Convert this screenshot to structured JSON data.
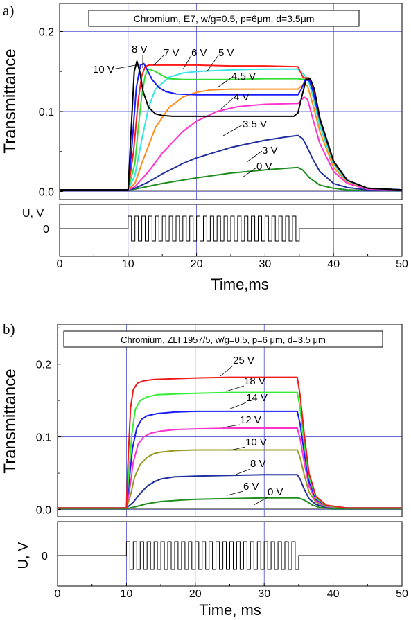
{
  "chart_data": [
    {
      "type": "line",
      "panel_label": "a)",
      "title": "Chromium, E7, w/g=0.5, p=6μm, d=3.5μm",
      "ylabel": "Transmittance",
      "xlabel": "Time,ms",
      "xlim": [
        0,
        50
      ],
      "ylim": [
        -0.01,
        0.235
      ],
      "yticks": [
        0.0,
        0.1,
        0.2
      ],
      "ytick_labels": [
        "0.0",
        "0.1",
        "0.2"
      ],
      "xticks": [
        0,
        10,
        20,
        30,
        40,
        50
      ],
      "xtick_labels": [
        "0",
        "10",
        "20",
        "30",
        "40",
        "50"
      ],
      "grid": true,
      "series": [
        {
          "name": "0 V",
          "color": "#8c8c8c",
          "x": [
            0,
            10,
            20,
            30,
            35,
            40,
            50
          ],
          "y": [
            0.001,
            0.001,
            0.001,
            0.001,
            0.001,
            0.001,
            0.001
          ]
        },
        {
          "name": "3 V",
          "color": "#1e8c1e",
          "x": [
            0,
            10,
            11,
            15,
            20,
            25,
            30,
            33,
            34.8,
            35.5,
            36.5,
            38,
            40,
            42,
            45,
            50
          ],
          "y": [
            0.002,
            0.002,
            0.003,
            0.01,
            0.017,
            0.023,
            0.027,
            0.029,
            0.03,
            0.027,
            0.017,
            0.008,
            0.004,
            0.002,
            0.001,
            0.001
          ]
        },
        {
          "name": "3.5 V",
          "color": "#1f2f9c",
          "x": [
            0,
            10,
            11,
            13,
            15,
            18,
            20,
            25,
            30,
            33,
            34.8,
            35.5,
            36,
            37,
            38,
            40,
            42,
            45,
            50
          ],
          "y": [
            0.002,
            0.002,
            0.004,
            0.012,
            0.022,
            0.035,
            0.042,
            0.055,
            0.064,
            0.068,
            0.07,
            0.066,
            0.058,
            0.04,
            0.025,
            0.01,
            0.005,
            0.002,
            0.001
          ]
        },
        {
          "name": "4 V",
          "color": "#ff33cc",
          "x": [
            0,
            10,
            11,
            13,
            15,
            18,
            20,
            23,
            26,
            30,
            34.8,
            35.7,
            36.2,
            37,
            38,
            40,
            42,
            45,
            50
          ],
          "y": [
            0.002,
            0.002,
            0.006,
            0.025,
            0.048,
            0.075,
            0.088,
            0.1,
            0.106,
            0.109,
            0.11,
            0.118,
            0.115,
            0.09,
            0.06,
            0.025,
            0.01,
            0.003,
            0.002
          ]
        },
        {
          "name": "4.5 V",
          "color": "#ff8c1a",
          "x": [
            0,
            10,
            11,
            12,
            14,
            16,
            18,
            20,
            22,
            25,
            30,
            34.8,
            35.7,
            36.2,
            37,
            38,
            40,
            42,
            45,
            50
          ],
          "y": [
            0.002,
            0.002,
            0.01,
            0.035,
            0.08,
            0.105,
            0.118,
            0.124,
            0.127,
            0.128,
            0.128,
            0.128,
            0.135,
            0.132,
            0.108,
            0.075,
            0.03,
            0.012,
            0.004,
            0.002
          ]
        },
        {
          "name": "5 V",
          "color": "#33e6e6",
          "x": [
            0,
            10,
            11,
            12,
            13,
            14,
            16,
            18,
            20,
            25,
            30,
            34.8,
            35.7,
            36.3,
            37,
            38,
            40,
            42,
            45,
            50
          ],
          "y": [
            0.002,
            0.002,
            0.02,
            0.065,
            0.105,
            0.128,
            0.143,
            0.148,
            0.15,
            0.152,
            0.153,
            0.153,
            0.146,
            0.14,
            0.118,
            0.082,
            0.034,
            0.013,
            0.004,
            0.002
          ]
        },
        {
          "name": "6 V",
          "color": "#33dd33",
          "x": [
            0,
            10,
            11,
            11.5,
            12,
            12.5,
            13,
            14,
            15,
            16,
            18,
            20,
            25,
            30,
            34.8,
            35.7,
            36.4,
            37,
            38,
            40,
            42,
            45,
            50
          ],
          "y": [
            0.002,
            0.002,
            0.035,
            0.08,
            0.12,
            0.145,
            0.153,
            0.15,
            0.145,
            0.141,
            0.14,
            0.14,
            0.14,
            0.141,
            0.141,
            0.14,
            0.141,
            0.125,
            0.088,
            0.036,
            0.014,
            0.004,
            0.002
          ]
        },
        {
          "name": "7 V",
          "color": "#ff1a1a",
          "x": [
            0,
            10,
            10.8,
            11.5,
            12,
            12.5,
            13,
            14,
            16,
            18,
            20,
            25,
            30,
            34.8,
            35.6,
            36.4,
            37,
            38,
            40,
            42,
            45,
            50
          ],
          "y": [
            0.002,
            0.002,
            0.05,
            0.115,
            0.145,
            0.156,
            0.158,
            0.158,
            0.158,
            0.158,
            0.158,
            0.157,
            0.157,
            0.156,
            0.142,
            0.142,
            0.128,
            0.09,
            0.037,
            0.014,
            0.004,
            0.002
          ]
        },
        {
          "name": "8 V",
          "color": "#1a1aff",
          "x": [
            0,
            10,
            10.6,
            11.2,
            11.8,
            12.3,
            12.8,
            13.5,
            14.5,
            15.5,
            17,
            20,
            25,
            30,
            34.8,
            35.3,
            35.9,
            36.5,
            37,
            38,
            40,
            42,
            45,
            50
          ],
          "y": [
            0.002,
            0.002,
            0.06,
            0.13,
            0.158,
            0.16,
            0.152,
            0.14,
            0.13,
            0.125,
            0.122,
            0.121,
            0.121,
            0.121,
            0.121,
            0.128,
            0.14,
            0.138,
            0.125,
            0.09,
            0.038,
            0.014,
            0.004,
            0.002
          ]
        },
        {
          "name": "10 V",
          "color": "#000000",
          "x": [
            0,
            10,
            10.4,
            10.9,
            11.3,
            11.7,
            12.2,
            13,
            14,
            15,
            16.5,
            20,
            25,
            30,
            34.2,
            34.8,
            35.4,
            36,
            36.6,
            37.2,
            38,
            40,
            42,
            45,
            50
          ],
          "y": [
            0.002,
            0.002,
            0.07,
            0.15,
            0.163,
            0.15,
            0.125,
            0.105,
            0.097,
            0.095,
            0.094,
            0.094,
            0.094,
            0.094,
            0.094,
            0.098,
            0.12,
            0.14,
            0.141,
            0.128,
            0.092,
            0.038,
            0.014,
            0.004,
            0.002
          ]
        }
      ],
      "annotations": [
        "10 V",
        "8 V",
        "7 V",
        "6 V",
        "5 V",
        "4.5 V",
        "4 V",
        "3.5 V",
        "3 V",
        "0 V"
      ],
      "voltage_panel": {
        "ylabel": "U, V",
        "ytick_label": "0",
        "pulse_start": 10,
        "pulse_end": 35
      }
    },
    {
      "type": "line",
      "panel_label": "b)",
      "title": "Chromium, ZLI 1957/5, w/g=0.5, p=6 μm, d=3.5 μm",
      "ylabel": "Transmittance",
      "xlabel": "Time, ms",
      "xlim": [
        0,
        50
      ],
      "ylim": [
        -0.01,
        0.255
      ],
      "yticks": [
        0.0,
        0.1,
        0.2
      ],
      "ytick_labels": [
        "0.0",
        "0.1",
        "0.2"
      ],
      "xticks": [
        0,
        10,
        20,
        30,
        40,
        50
      ],
      "xtick_labels": [
        "0",
        "10",
        "20",
        "30",
        "40",
        "50"
      ],
      "grid": true,
      "series": [
        {
          "name": "0 V",
          "color": "#8c8c8c",
          "x": [
            0,
            10,
            20,
            30,
            35,
            40,
            50
          ],
          "y": [
            0.001,
            0.001,
            0.001,
            0.001,
            0.001,
            0.001,
            0.001
          ]
        },
        {
          "name": "6 V",
          "color": "#1e8c1e",
          "x": [
            0,
            10,
            11,
            13,
            15,
            18,
            20,
            25,
            30,
            34.8,
            35.3,
            36,
            37,
            38,
            40,
            42,
            45,
            50
          ],
          "y": [
            0.001,
            0.001,
            0.003,
            0.008,
            0.011,
            0.013,
            0.014,
            0.015,
            0.016,
            0.016,
            0.015,
            0.012,
            0.006,
            0.003,
            0.001,
            0.001,
            0.001,
            0.001
          ]
        },
        {
          "name": "8 V",
          "color": "#1f2f9c",
          "x": [
            0,
            10,
            11,
            12,
            13,
            14,
            15,
            17,
            20,
            25,
            30,
            34.8,
            35.2,
            35.8,
            36.5,
            37.5,
            39,
            42,
            45,
            50
          ],
          "y": [
            0.002,
            0.002,
            0.01,
            0.022,
            0.032,
            0.038,
            0.042,
            0.045,
            0.046,
            0.047,
            0.048,
            0.048,
            0.042,
            0.028,
            0.015,
            0.007,
            0.003,
            0.002,
            0.002,
            0.002
          ]
        },
        {
          "name": "10 V",
          "color": "#999922",
          "x": [
            0,
            10,
            10.6,
            11.2,
            12,
            13,
            14,
            15,
            17,
            20,
            25,
            30,
            34.8,
            35.2,
            35.8,
            36.5,
            37.5,
            39,
            42,
            45,
            50
          ],
          "y": [
            0.002,
            0.002,
            0.02,
            0.045,
            0.062,
            0.072,
            0.077,
            0.079,
            0.081,
            0.082,
            0.082,
            0.082,
            0.082,
            0.072,
            0.048,
            0.024,
            0.01,
            0.004,
            0.002,
            0.002,
            0.002
          ]
        },
        {
          "name": "12 V",
          "color": "#ff33cc",
          "x": [
            0,
            10,
            10.5,
            11,
            11.7,
            12.5,
            13.5,
            15,
            17,
            20,
            25,
            30,
            34.8,
            35.2,
            35.8,
            36.5,
            37.5,
            39,
            42,
            45,
            50
          ],
          "y": [
            0.002,
            0.002,
            0.03,
            0.065,
            0.09,
            0.1,
            0.105,
            0.108,
            0.11,
            0.111,
            0.112,
            0.112,
            0.112,
            0.098,
            0.065,
            0.032,
            0.012,
            0.004,
            0.002,
            0.002,
            0.002
          ]
        },
        {
          "name": "14 V",
          "color": "#1a1aff",
          "x": [
            0,
            10,
            10.4,
            10.9,
            11.5,
            12.2,
            13,
            14.5,
            17,
            20,
            25,
            30,
            34.8,
            35.2,
            35.8,
            36.5,
            37.5,
            39,
            42,
            45,
            50
          ],
          "y": [
            0.002,
            0.002,
            0.04,
            0.085,
            0.112,
            0.124,
            0.129,
            0.132,
            0.134,
            0.135,
            0.135,
            0.135,
            0.135,
            0.118,
            0.078,
            0.038,
            0.014,
            0.005,
            0.002,
            0.002,
            0.002
          ]
        },
        {
          "name": "18 V",
          "color": "#33ee33",
          "x": [
            0,
            10,
            10.3,
            10.8,
            11.3,
            12,
            13,
            14.5,
            17,
            20,
            25,
            30,
            34.8,
            35.2,
            35.8,
            36.5,
            37.5,
            39,
            42,
            45,
            50
          ],
          "y": [
            0.002,
            0.002,
            0.045,
            0.105,
            0.138,
            0.15,
            0.155,
            0.158,
            0.159,
            0.16,
            0.161,
            0.161,
            0.161,
            0.14,
            0.092,
            0.045,
            0.016,
            0.005,
            0.002,
            0.002,
            0.002
          ]
        },
        {
          "name": "25 V",
          "color": "#ee1a1a",
          "x": [
            0,
            10,
            10.2,
            10.6,
            11,
            11.6,
            12.5,
            14,
            17,
            20,
            25,
            30,
            34.8,
            35.2,
            35.8,
            36.5,
            37.5,
            39,
            42,
            45,
            50
          ],
          "y": [
            0.002,
            0.002,
            0.06,
            0.14,
            0.165,
            0.174,
            0.177,
            0.179,
            0.18,
            0.181,
            0.182,
            0.182,
            0.182,
            0.158,
            0.104,
            0.05,
            0.018,
            0.006,
            0.002,
            0.002,
            0.002
          ]
        }
      ],
      "annotations": [
        "25 V",
        "18 V",
        "14 V",
        "12 V",
        "10 V",
        "8 V",
        "6 V",
        "0 V"
      ],
      "voltage_panel": {
        "ylabel": "U, V",
        "ytick_label": "0",
        "pulse_start": 10,
        "pulse_end": 35
      }
    }
  ]
}
